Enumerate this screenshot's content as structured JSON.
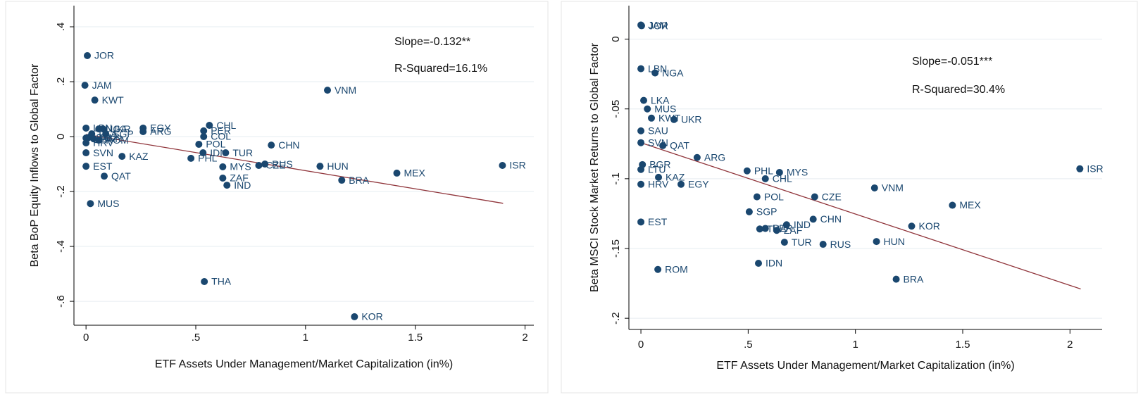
{
  "chart_data": [
    {
      "type": "scatter",
      "y_label": "Beta BoP Equity Inflows to Global Factor",
      "x_label": "ETF Assets Under Management/Market Capitalization (in%)",
      "annotations": [
        "Slope=-0.132**",
        "R-Squared=16.1%"
      ],
      "xlim": [
        -0.055,
        2.04
      ],
      "ylim": [
        -0.687,
        0.477
      ],
      "xticks": [
        0,
        {
          "value": 0.5,
          "label": ".5"
        },
        1,
        1.5,
        2
      ],
      "yticks": [
        {
          "value": 0.4,
          "label": ".4"
        },
        {
          "value": 0.2,
          "label": ".2"
        },
        0,
        {
          "value": -0.2,
          "label": "-.2"
        },
        {
          "value": -0.4,
          "label": "-.4"
        },
        {
          "value": -0.6,
          "label": "-.6"
        }
      ],
      "grid": true,
      "color": "#1a476f",
      "fit_color": "#90353b",
      "labels": [
        "JOR",
        "JAM",
        "KWT",
        "VNM",
        "LBN",
        "NGA",
        "UKR",
        "SGP",
        "LKA",
        "SAU",
        "BGR",
        "ROM",
        "LTU",
        "HRV",
        "SVN",
        "EST",
        "QAT",
        "MUS",
        "KAZ",
        "EGY",
        "ARG",
        "CHL",
        "PER",
        "COL",
        "POL",
        "IDN",
        "PHL",
        "TUR",
        "MYS",
        "ZAF",
        "IND",
        "CZE",
        "RUS",
        "CHN",
        "HUN",
        "BRA",
        "MEX",
        "ISR",
        "THA",
        "KOR"
      ],
      "x": [
        0.006,
        -0.005,
        0.04,
        1.1,
        0,
        0.058,
        0.077,
        0.09,
        0.026,
        0.013,
        0.035,
        0.058,
        0,
        0,
        0,
        0,
        0.083,
        0.02,
        0.164,
        0.26,
        0.26,
        0.562,
        0.536,
        0.536,
        0.514,
        0.533,
        0.478,
        0.636,
        0.623,
        0.623,
        0.642,
        0.787,
        0.815,
        0.844,
        1.066,
        1.165,
        1.416,
        1.897,
        0.539,
        1.223
      ],
      "y": [
        0.295,
        0.187,
        0.133,
        0.169,
        0.031,
        0.028,
        0.028,
        0.01,
        0.01,
        -0.003,
        -0.008,
        -0.013,
        -0.005,
        -0.023,
        -0.059,
        -0.108,
        -0.144,
        -0.244,
        -0.072,
        0.031,
        0.018,
        0.041,
        0.021,
        0.0,
        -0.028,
        -0.059,
        -0.079,
        -0.059,
        -0.11,
        -0.151,
        -0.177,
        -0.105,
        -0.1,
        -0.031,
        -0.108,
        -0.159,
        -0.133,
        -0.105,
        -0.528,
        -0.656
      ],
      "fit": {
        "x": [
          0,
          1.9
        ],
        "y": [
          0.008,
          -0.243
        ]
      }
    },
    {
      "type": "scatter",
      "y_label": "Beta MSCI Stock Market Returns to Global Factor",
      "x_label": "ETF Assets Under Management/Market Capitalization (in%)",
      "annotations": [
        "Slope=-0.051***",
        "R-Squared=30.4%"
      ],
      "xlim": [
        -0.056,
        2.15
      ],
      "ylim": [
        -0.208,
        0.024
      ],
      "xticks": [
        0,
        {
          "value": 0.5,
          "label": ".5"
        },
        1,
        1.5,
        2
      ],
      "yticks": [
        0,
        {
          "value": -0.05,
          "label": "-.05"
        },
        {
          "value": -0.1,
          "label": "-.1"
        },
        {
          "value": -0.15,
          "label": "-.15"
        },
        {
          "value": -0.2,
          "label": "-.2"
        }
      ],
      "grid": true,
      "color": "#1a476f",
      "fit_color": "#90353b",
      "labels": [
        "JAM",
        "JOR",
        "LBN",
        "NGA",
        "LKA",
        "MUS",
        "KWT",
        "UKR",
        "SAU",
        "SVN",
        "QAT",
        "ARG",
        "BGR",
        "LTU",
        "KAZ",
        "HRV",
        "EGY",
        "PHL",
        "MYS",
        "CHL",
        "POL",
        "CZE",
        "VNM",
        "MEX",
        "ISR",
        "SGP",
        "CHN",
        "KOR",
        "EST",
        "IND",
        "THA",
        "PER",
        "ZAF",
        "TUR",
        "RUS",
        "HUN",
        "ROM",
        "IDN",
        "BRA"
      ],
      "x": [
        0,
        0.003,
        0,
        0.066,
        0.013,
        0.03,
        0.049,
        0.154,
        0,
        0,
        0.102,
        0.262,
        0.007,
        0,
        0.082,
        0,
        0.187,
        0.495,
        0.646,
        0.58,
        0.541,
        0.81,
        1.089,
        1.452,
        2.046,
        0.505,
        0.803,
        1.262,
        0,
        0.679,
        0.554,
        0.58,
        0.633,
        0.669,
        0.849,
        1.098,
        0.079,
        0.548,
        1.19
      ],
      "y": [
        0.0101,
        0.0096,
        -0.0212,
        -0.0242,
        -0.0439,
        -0.05,
        -0.0566,
        -0.0576,
        -0.0657,
        -0.0742,
        -0.0763,
        -0.0848,
        -0.0899,
        -0.0934,
        -0.099,
        -0.104,
        -0.104,
        -0.0944,
        -0.0955,
        -0.1,
        -0.113,
        -0.113,
        -0.1066,
        -0.119,
        -0.0929,
        -0.1237,
        -0.129,
        -0.134,
        -0.131,
        -0.133,
        -0.136,
        -0.1356,
        -0.137,
        -0.1455,
        -0.147,
        -0.145,
        -0.165,
        -0.1606,
        -0.172
      ],
      "fit": {
        "x": [
          0,
          2.05
        ],
        "y": [
          -0.0742,
          -0.179
        ]
      }
    }
  ]
}
